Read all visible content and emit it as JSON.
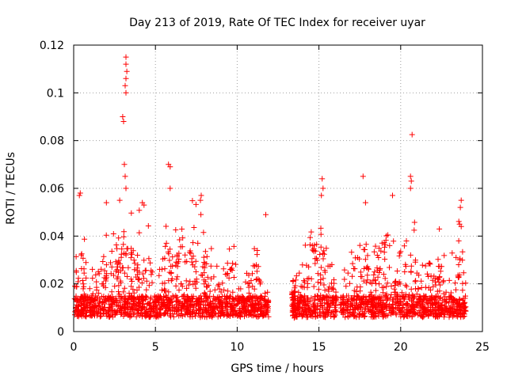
{
  "chart_data": {
    "type": "scatter",
    "title": "Day 213 of 2019, Rate Of TEC Index for receiver uyar",
    "xlabel": "GPS time / hours",
    "ylabel": "ROTI / TECUs",
    "xlim": [
      0,
      25
    ],
    "ylim": [
      0,
      0.12
    ],
    "xticks": [
      0,
      5,
      10,
      15,
      20,
      25
    ],
    "xtick_labels": [
      "0",
      "5",
      "10",
      "15",
      "20",
      "25"
    ],
    "yticks": [
      0,
      0.02,
      0.04,
      0.06,
      0.08,
      0.1,
      0.12
    ],
    "ytick_labels": [
      "0",
      "0.02",
      "0.04",
      "0.06",
      "0.08",
      "0.1",
      "0.12"
    ],
    "grid": true,
    "marker": "+",
    "series": [
      {
        "name": "ROTI",
        "color": "#ff0000",
        "data_gaps_hours": [
          [
            11.95,
            13.4
          ],
          [
            16.1,
            16.3
          ]
        ],
        "notable_points": [
          {
            "x": 3.2,
            "y": 0.115
          },
          {
            "x": 3.2,
            "y": 0.112
          },
          {
            "x": 3.25,
            "y": 0.109
          },
          {
            "x": 3.2,
            "y": 0.106
          },
          {
            "x": 3.15,
            "y": 0.103
          },
          {
            "x": 3.2,
            "y": 0.1
          },
          {
            "x": 3.0,
            "y": 0.09
          },
          {
            "x": 3.05,
            "y": 0.088
          },
          {
            "x": 3.1,
            "y": 0.07
          },
          {
            "x": 3.15,
            "y": 0.065
          },
          {
            "x": 3.2,
            "y": 0.06
          },
          {
            "x": 20.7,
            "y": 0.0825
          },
          {
            "x": 20.6,
            "y": 0.065
          },
          {
            "x": 20.65,
            "y": 0.063
          },
          {
            "x": 20.6,
            "y": 0.06
          },
          {
            "x": 17.7,
            "y": 0.065
          },
          {
            "x": 5.8,
            "y": 0.07
          },
          {
            "x": 5.9,
            "y": 0.069
          },
          {
            "x": 5.9,
            "y": 0.06
          },
          {
            "x": 15.2,
            "y": 0.064
          },
          {
            "x": 15.25,
            "y": 0.06
          },
          {
            "x": 15.15,
            "y": 0.057
          },
          {
            "x": 11.75,
            "y": 0.049
          },
          {
            "x": 0.4,
            "y": 0.058
          },
          {
            "x": 0.35,
            "y": 0.057
          },
          {
            "x": 7.8,
            "y": 0.057
          },
          {
            "x": 7.75,
            "y": 0.055
          },
          {
            "x": 19.5,
            "y": 0.057
          },
          {
            "x": 23.7,
            "y": 0.055
          },
          {
            "x": 23.65,
            "y": 0.052
          },
          {
            "x": 23.6,
            "y": 0.045
          },
          {
            "x": 23.7,
            "y": 0.044
          },
          {
            "x": 23.55,
            "y": 0.038
          },
          {
            "x": 17.85,
            "y": 0.054
          },
          {
            "x": 2.0,
            "y": 0.054
          },
          {
            "x": 4.2,
            "y": 0.054
          },
          {
            "x": 4.3,
            "y": 0.053
          }
        ]
      }
    ]
  }
}
